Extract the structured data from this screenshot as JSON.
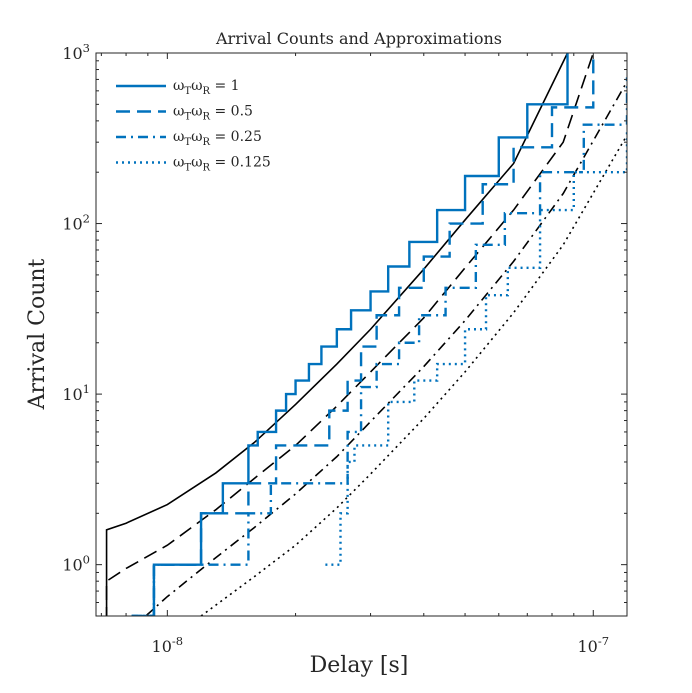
{
  "chart_data": {
    "type": "line",
    "title": "Arrival Counts and Approximations",
    "xlabel": "Delay [s]",
    "ylabel": "Arrival Count",
    "x_scale": "log",
    "y_scale": "log",
    "xlim": [
      6.8e-09,
      1.2e-07
    ],
    "ylim": [
      0.5,
      1000
    ],
    "x_ticks": [
      {
        "value": 1e-08,
        "base": "10",
        "exp": "-8"
      },
      {
        "value": 1e-07,
        "base": "10",
        "exp": "-7"
      }
    ],
    "y_ticks": [
      {
        "value": 1,
        "base": "10",
        "exp": "0"
      },
      {
        "value": 10,
        "base": "10",
        "exp": "1"
      },
      {
        "value": 100,
        "base": "10",
        "exp": "2"
      },
      {
        "value": 1000,
        "base": "10",
        "exp": "3"
      }
    ],
    "grid": false,
    "legend_position": "top-left",
    "colors": {
      "measured": "#0072BD",
      "approximation": "#000000",
      "axis": "#262626"
    },
    "series": [
      {
        "name": "1",
        "legend_label": "ωTωR = 1",
        "dash": "solid",
        "kind": "step",
        "x": [
          8.3e-09,
          9.3e-09,
          1.2e-08,
          1.35e-08,
          1.55e-08,
          1.63e-08,
          1.8e-08,
          1.9e-08,
          2e-08,
          2.15e-08,
          2.3e-08,
          2.5e-08,
          2.7e-08,
          3e-08,
          3.3e-08,
          3.7e-08,
          4.3e-08,
          5e-08,
          6e-08,
          7e-08,
          8.7e-08
        ],
        "y": [
          0.5,
          1,
          2,
          3,
          5,
          6,
          8,
          10,
          12,
          15,
          19,
          24,
          31,
          40,
          56,
          78,
          120,
          190,
          320,
          500,
          1000
        ]
      },
      {
        "name": "0.5",
        "legend_label": "ωTωR = 0.5",
        "dash": "dashed",
        "kind": "step",
        "x": [
          8.3e-09,
          9.3e-09,
          1.2e-08,
          1.55e-08,
          1.8e-08,
          2.3e-08,
          2.4e-08,
          2.65e-08,
          2.85e-08,
          3.1e-08,
          3.5e-08,
          4e-08,
          4.6e-08,
          5.5e-08,
          6.5e-08,
          8e-08,
          1e-07
        ],
        "y": [
          0.5,
          1,
          2,
          3,
          5,
          5,
          8,
          12,
          19,
          29,
          42,
          64,
          100,
          170,
          280,
          480,
          1000
        ]
      },
      {
        "name": "0.25",
        "legend_label": "ωTωR = 0.25",
        "dash": "dashdot",
        "kind": "step",
        "x": [
          8.3e-09,
          9.3e-09,
          1.55e-08,
          1.75e-08,
          2.4e-08,
          2.65e-08,
          2.85e-08,
          3.1e-08,
          3.5e-08,
          3.9e-08,
          4.5e-08,
          5.3e-08,
          6.2e-08,
          7.5e-08,
          9.5e-08,
          1.2e-07
        ],
        "y": [
          0.5,
          1,
          2,
          3,
          3,
          6,
          11,
          15,
          20,
          29,
          42,
          75,
          115,
          200,
          380,
          720
        ]
      },
      {
        "name": "0.125",
        "legend_label": "ωTωR = 0.125",
        "dash": "dotted",
        "kind": "step",
        "x": [
          2.35e-08,
          2.55e-08,
          2.65e-08,
          2.75e-08,
          3.3e-08,
          3.8e-08,
          4.3e-08,
          5e-08,
          5.6e-08,
          6.3e-08,
          7.5e-08,
          9e-08,
          1.2e-07
        ],
        "y": [
          1,
          2,
          4,
          5,
          9,
          12,
          15,
          24,
          38,
          55,
          120,
          200,
          360
        ]
      },
      {
        "name": "",
        "dash": "solid",
        "kind": "approximation",
        "x": [
          7.2e-09,
          8e-09,
          1e-08,
          1.3e-08,
          1.6e-08,
          2e-08,
          2.5e-08,
          3e-08,
          4e-08,
          5e-08,
          6.5e-08,
          8.7e-08
        ],
        "y": [
          1.6,
          1.75,
          2.25,
          3.45,
          5.2,
          8.7,
          15.0,
          24.0,
          54,
          105,
          225,
          1000
        ]
      },
      {
        "name": "",
        "dash": "dashed",
        "kind": "approximation",
        "x": [
          7.2e-09,
          8e-09,
          1e-08,
          1.3e-08,
          1.6e-08,
          2e-08,
          2.5e-08,
          3e-08,
          4e-08,
          5e-08,
          6.5e-08,
          8.5e-08,
          1e-07
        ],
        "y": [
          0.8,
          0.95,
          1.3,
          2.1,
          3.2,
          5.0,
          8.5,
          13.5,
          28,
          55,
          120,
          300,
          1000
        ]
      },
      {
        "name": "",
        "dash": "dashdot",
        "kind": "approximation",
        "x": [
          8.9e-09,
          1e-08,
          1.3e-08,
          1.6e-08,
          2e-08,
          2.5e-08,
          3e-08,
          4e-08,
          5e-08,
          6.5e-08,
          8.5e-08,
          1.2e-07
        ],
        "y": [
          0.5,
          0.65,
          1.1,
          1.65,
          2.6,
          4.3,
          6.9,
          14.5,
          27,
          60,
          150,
          680
        ]
      },
      {
        "name": "",
        "dash": "dotted",
        "kind": "approximation",
        "x": [
          1.2e-08,
          1.6e-08,
          2e-08,
          2.5e-08,
          3e-08,
          4e-08,
          5e-08,
          6.5e-08,
          8.5e-08,
          1.2e-07
        ],
        "y": [
          0.5,
          0.85,
          1.3,
          2.15,
          3.4,
          7.2,
          13.5,
          30,
          75,
          330
        ]
      }
    ]
  }
}
